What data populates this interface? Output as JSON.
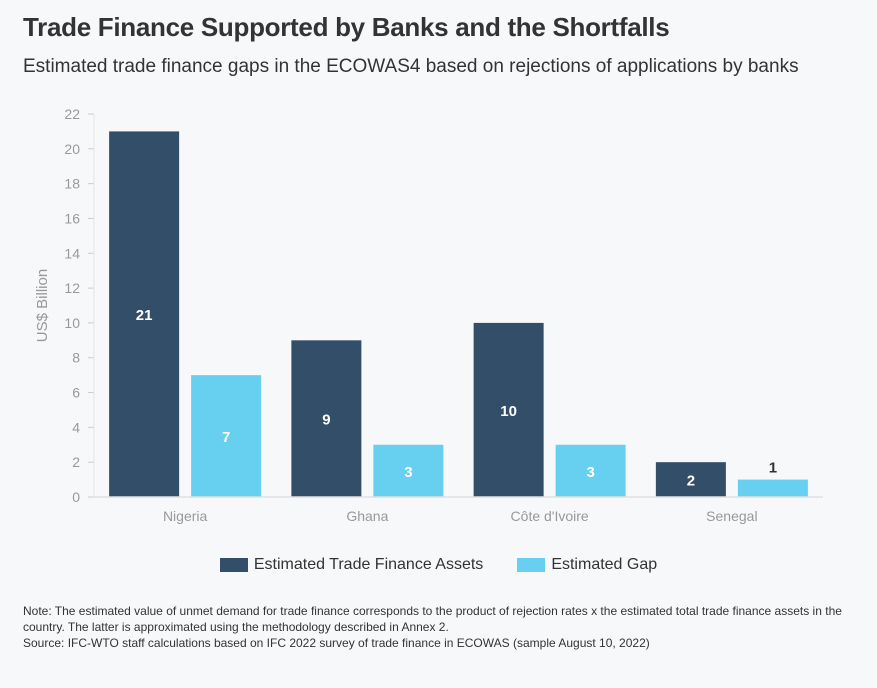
{
  "title": "Trade Finance Supported by Banks and the Shortfalls",
  "subtitle": "Estimated trade finance gaps in the ECOWAS4 based on rejections of applications by banks",
  "note": "Note: The estimated value of unmet demand for trade finance corresponds to the product of rejection rates x the estimated total trade finance assets in the country. The latter is approximated using the methodology described in Annex 2.",
  "source": "Source: IFC-WTO staff calculations based on IFC 2022 survey of trade finance in ECOWAS (sample August 10, 2022)",
  "colors": {
    "assets": "#334e68",
    "gap": "#67cff0",
    "axis_text": "#999999",
    "background": "#f7f8fa"
  },
  "chart_data": {
    "type": "bar",
    "categories": [
      "Nigeria",
      "Ghana",
      "Côte d'Ivoire",
      "Senegal"
    ],
    "series": [
      {
        "name": "Estimated Trade Finance Assets",
        "values": [
          21,
          9,
          10,
          2
        ]
      },
      {
        "name": "Estimated Gap",
        "values": [
          7,
          3,
          3,
          1
        ]
      }
    ],
    "ylabel": "US$ Billion",
    "ylim": [
      0,
      22
    ],
    "yticks": [
      0,
      2,
      4,
      6,
      8,
      10,
      12,
      14,
      16,
      18,
      20,
      22
    ],
    "grid": false,
    "legend_position": "bottom"
  }
}
